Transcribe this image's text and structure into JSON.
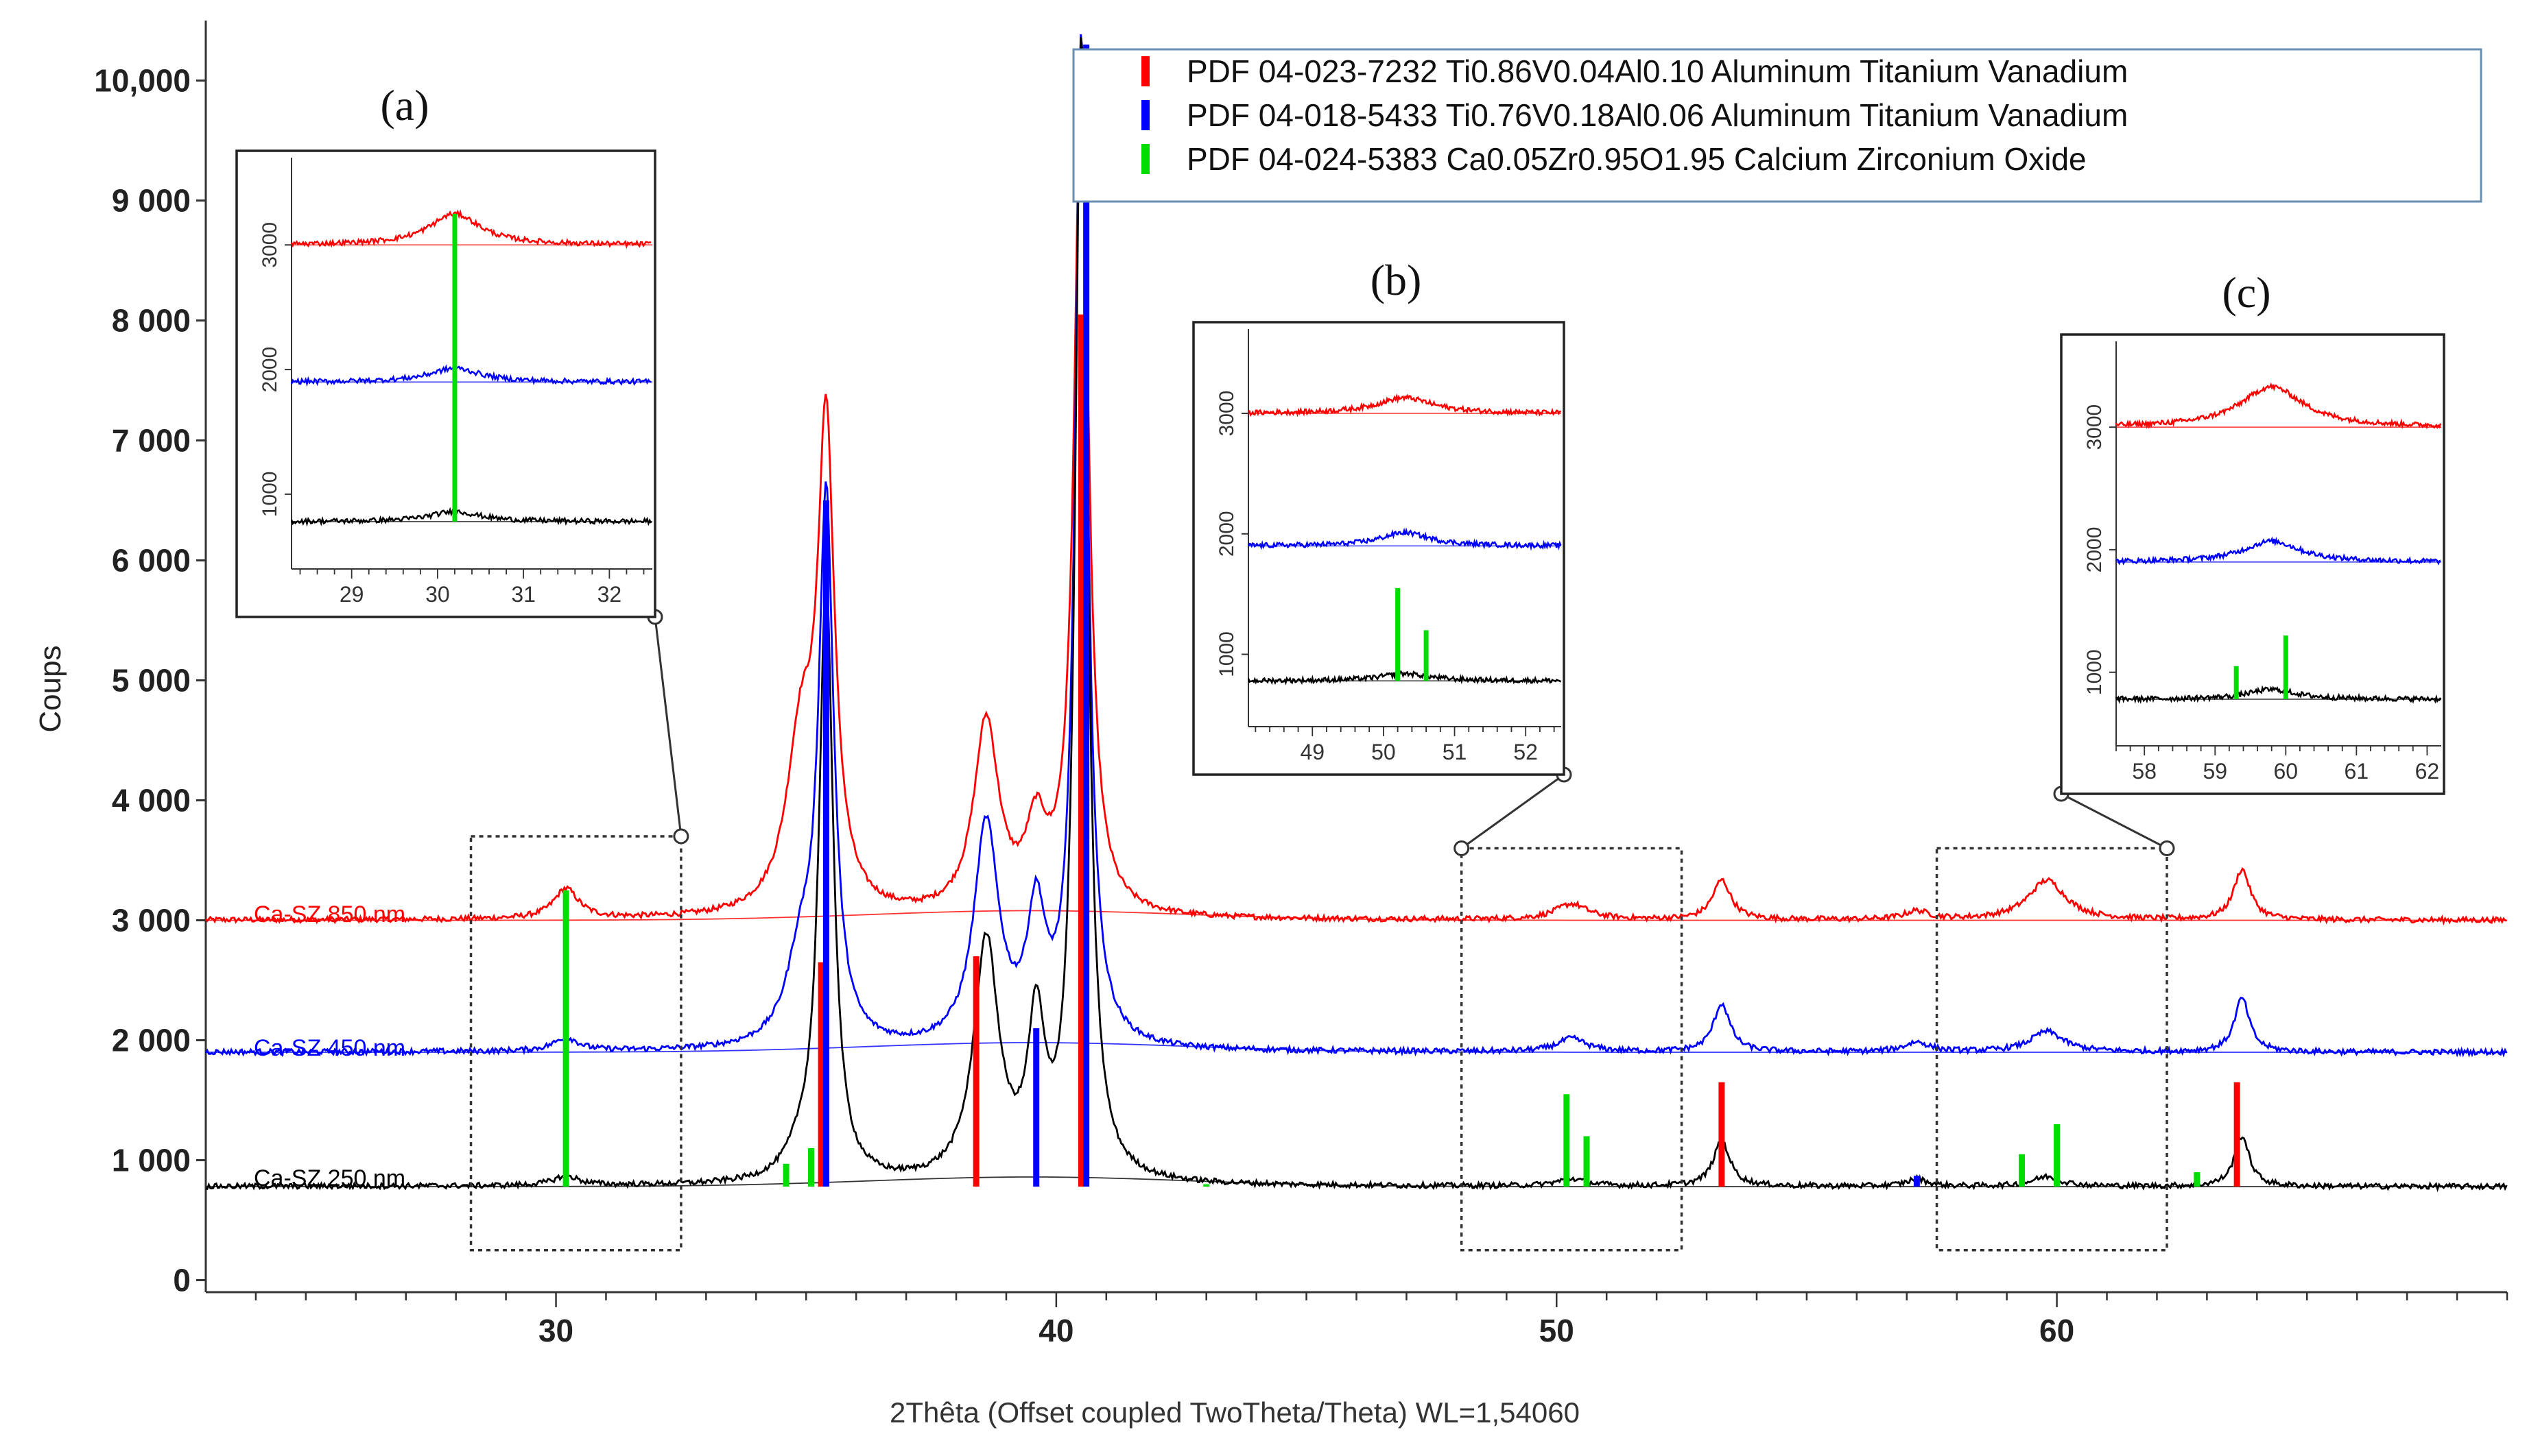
{
  "chart_data": {
    "type": "line",
    "xlabel": "2Thêta (Offset coupled TwoTheta/Theta) WL=1,54060",
    "ylabel": "Coups",
    "xlim": [
      23,
      69
    ],
    "ylim": [
      -100,
      10500
    ],
    "x_ticks": [
      30,
      40,
      50,
      60
    ],
    "y_ticks": [
      {
        "value": 0,
        "label": "0"
      },
      {
        "value": 1000,
        "label": "1 000"
      },
      {
        "value": 2000,
        "label": "2 000"
      },
      {
        "value": 3000,
        "label": "3 000"
      },
      {
        "value": 4000,
        "label": "4 000"
      },
      {
        "value": 5000,
        "label": "5 000"
      },
      {
        "value": 6000,
        "label": "6 000"
      },
      {
        "value": 7000,
        "label": "7 000"
      },
      {
        "value": 8000,
        "label": "8 000"
      },
      {
        "value": 9000,
        "label": "9 000"
      },
      {
        "value": 10000,
        "label": "10,000"
      }
    ],
    "series": [
      {
        "name": "Ca-SZ 850 nm",
        "color": "#ff0000",
        "baseline": 3000,
        "peaks": [
          [
            30.2,
            250,
            0.3
          ],
          [
            34.9,
            1400,
            0.35
          ],
          [
            35.4,
            3900,
            0.2
          ],
          [
            38.6,
            1600,
            0.3
          ],
          [
            39.6,
            650,
            0.25
          ],
          [
            40.5,
            7100,
            0.17
          ],
          [
            50.3,
            130,
            0.4
          ],
          [
            53.3,
            330,
            0.22
          ],
          [
            57.2,
            70,
            0.3
          ],
          [
            59.8,
            330,
            0.45
          ],
          [
            63.7,
            420,
            0.2
          ]
        ]
      },
      {
        "name": "Ca-SZ 450 nm",
        "color": "#0000ff",
        "baseline": 1900,
        "peaks": [
          [
            30.2,
            110,
            0.3
          ],
          [
            34.9,
            700,
            0.35
          ],
          [
            35.4,
            4500,
            0.18
          ],
          [
            38.6,
            1850,
            0.3
          ],
          [
            39.6,
            1050,
            0.22
          ],
          [
            40.5,
            8400,
            0.15
          ],
          [
            50.3,
            110,
            0.35
          ],
          [
            53.3,
            400,
            0.2
          ],
          [
            57.2,
            80,
            0.3
          ],
          [
            59.8,
            170,
            0.4
          ],
          [
            63.7,
            450,
            0.18
          ]
        ]
      },
      {
        "name": "Ca-SZ 250 nm",
        "color": "#000000",
        "baseline": 780,
        "peaks": [
          [
            30.2,
            80,
            0.3
          ],
          [
            34.9,
            200,
            0.35
          ],
          [
            35.4,
            5000,
            0.17
          ],
          [
            38.6,
            2000,
            0.3
          ],
          [
            39.6,
            1250,
            0.2
          ],
          [
            40.5,
            9500,
            0.15
          ],
          [
            50.3,
            60,
            0.35
          ],
          [
            53.3,
            380,
            0.2
          ],
          [
            57.2,
            60,
            0.25
          ],
          [
            59.8,
            80,
            0.35
          ],
          [
            63.7,
            420,
            0.18
          ]
        ]
      }
    ],
    "references": [
      {
        "name": "PDF 04-023-7232 Ti0.86V0.04Al0.10 Aluminum Titanium Vanadium",
        "color": "#ff0000",
        "lines": [
          [
            35.3,
            2650
          ],
          [
            38.4,
            2700
          ],
          [
            40.5,
            8050
          ],
          [
            53.3,
            1650
          ],
          [
            63.6,
            1650
          ]
        ]
      },
      {
        "name": "PDF 04-018-5433 Ti0.76V0.18Al0.06 Aluminum Titanium Vanadium",
        "color": "#0000ff",
        "lines": [
          [
            35.4,
            6500
          ],
          [
            39.6,
            2100
          ],
          [
            40.6,
            10300
          ],
          [
            57.2,
            870
          ]
        ]
      },
      {
        "name": "PDF 04-024-5383 Ca0.05Zr0.95O1.95 Calcium Zirconium Oxide",
        "color": "#00dd00",
        "lines": [
          [
            30.2,
            3250
          ],
          [
            34.6,
            970
          ],
          [
            35.1,
            1100
          ],
          [
            43.0,
            800
          ],
          [
            50.2,
            1550
          ],
          [
            50.6,
            1200
          ],
          [
            59.3,
            1050
          ],
          [
            60.0,
            1300
          ],
          [
            62.8,
            900
          ]
        ]
      }
    ],
    "series_labels": [
      "Ca-SZ 850 nm",
      "Ca-SZ 450 nm",
      "Ca-SZ 250 nm"
    ],
    "insets": [
      {
        "label": "(a)",
        "xrange": [
          28.3,
          32.5
        ],
        "region_y": [
          250,
          3700
        ],
        "x_ticks": [
          29,
          30,
          31,
          32
        ],
        "y_ticks": [
          1000,
          2000,
          3000
        ],
        "ref_lines": [
          [
            30.2,
            3250
          ]
        ],
        "peak_center": 30.2
      },
      {
        "label": "(b)",
        "xrange": [
          48.1,
          52.5
        ],
        "region_y": [
          250,
          3600
        ],
        "x_ticks": [
          49,
          50,
          51,
          52
        ],
        "y_ticks": [
          1000,
          2000,
          3000
        ],
        "ref_lines": [
          [
            50.2,
            1550
          ],
          [
            50.6,
            1200
          ]
        ],
        "peak_center": 50.3
      },
      {
        "label": "(c)",
        "xrange": [
          57.6,
          62.2
        ],
        "region_y": [
          250,
          3600
        ],
        "x_ticks": [
          58,
          59,
          60,
          61,
          62
        ],
        "y_ticks": [
          1000,
          2000,
          3000
        ],
        "ref_lines": [
          [
            59.3,
            1050
          ],
          [
            60.0,
            1300
          ]
        ],
        "peak_center": 59.8
      }
    ]
  }
}
